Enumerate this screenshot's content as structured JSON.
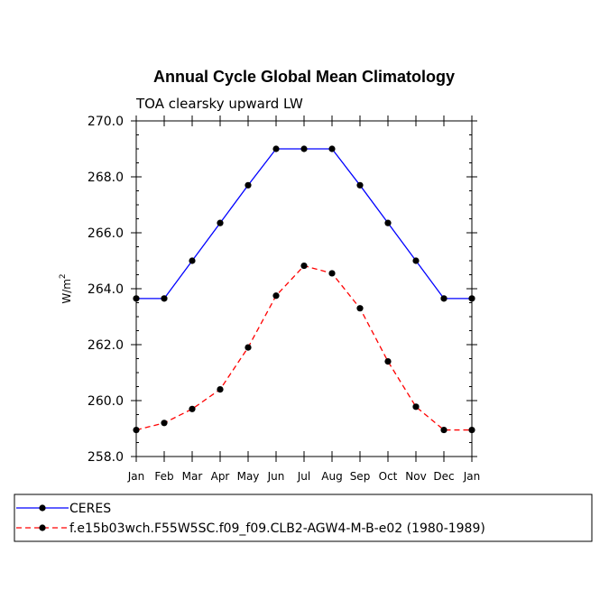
{
  "chart_data": {
    "type": "line",
    "title": "Annual Cycle Global Mean Climatology",
    "subtitle": "TOA clearsky upward LW",
    "ylabel": "W/m",
    "ylabel_superscript": "2",
    "xlabel": "",
    "ylim": [
      258.0,
      270.0
    ],
    "yticks": [
      258.0,
      260.0,
      262.0,
      264.0,
      266.0,
      268.0,
      270.0
    ],
    "ytick_labels": [
      "258.0",
      "260.0",
      "262.0",
      "264.0",
      "266.0",
      "268.0",
      "270.0"
    ],
    "categories": [
      "Jan",
      "Feb",
      "Mar",
      "Apr",
      "May",
      "Jun",
      "Jul",
      "Aug",
      "Sep",
      "Oct",
      "Nov",
      "Dec",
      "Jan"
    ],
    "series": [
      {
        "name": "CERES",
        "color": "#0000ff",
        "style": "solid",
        "values": [
          263.65,
          263.65,
          265.0,
          266.35,
          267.7,
          269.0,
          269.0,
          269.0,
          267.7,
          266.35,
          265.0,
          263.65,
          263.65
        ]
      },
      {
        "name": "f.e15b03wch.F55W5SC.f09_f09.CLB2-AGW4-M-B-e02 (1980-1989)",
        "color": "#ff0000",
        "style": "dashed",
        "values": [
          258.95,
          259.2,
          259.7,
          260.4,
          261.9,
          263.75,
          264.82,
          264.55,
          263.3,
          261.4,
          259.78,
          258.95,
          258.95
        ]
      }
    ],
    "grid": false,
    "legend_position": "bottom-left"
  }
}
